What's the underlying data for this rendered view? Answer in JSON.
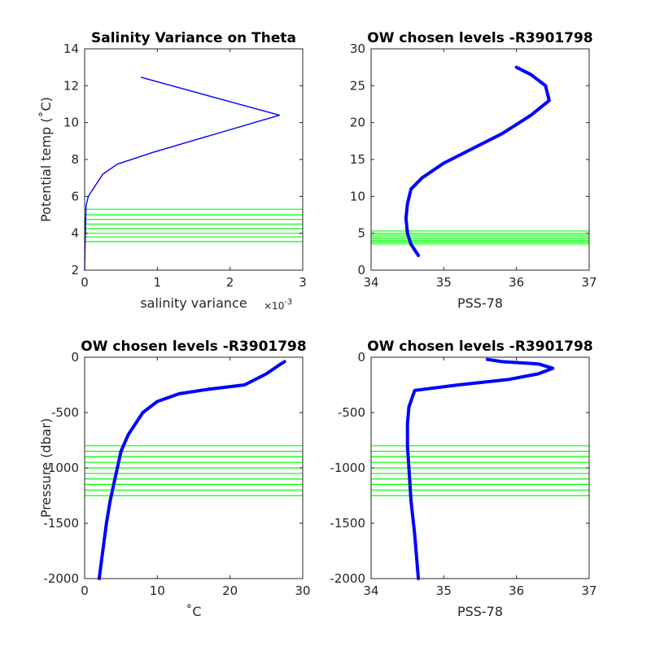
{
  "chart_data": [
    {
      "type": "line",
      "title": "Salinity Variance on Theta",
      "xlabel": "salinity variance",
      "x_exponent_label": "×10",
      "x_exponent_power": "-3",
      "ylabel": "Potential temp (˚C)",
      "xlim": [
        0,
        3
      ],
      "ylim": [
        2,
        14
      ],
      "xticks": [
        0,
        1,
        2,
        3
      ],
      "yticks": [
        2,
        4,
        6,
        8,
        10,
        12,
        14
      ],
      "grid": false,
      "series": [
        {
          "color": "#0000ff",
          "x": [
            0.0,
            0.01,
            0.02,
            0.05,
            0.1,
            0.25,
            0.45,
            0.95,
            2.68,
            0.78
          ],
          "y": [
            2.0,
            4.0,
            5.5,
            6.0,
            6.3,
            7.2,
            7.75,
            8.4,
            10.4,
            12.45
          ]
        }
      ],
      "hlines": {
        "color": "#00ff00",
        "y": [
          3.55,
          3.8,
          4.0,
          4.25,
          4.5,
          4.75,
          5.0,
          5.3
        ]
      }
    },
    {
      "type": "line",
      "title": "OW chosen levels -R3901798",
      "xlabel": "PSS-78",
      "ylabel": "",
      "xlim": [
        34,
        37
      ],
      "ylim": [
        0,
        30
      ],
      "xticks": [
        34,
        35,
        36,
        37
      ],
      "yticks": [
        0,
        5,
        10,
        15,
        20,
        25,
        30
      ],
      "grid": false,
      "series": [
        {
          "color": "#0000ff",
          "x": [
            34.65,
            34.55,
            34.5,
            34.48,
            34.5,
            34.55,
            34.7,
            35.0,
            35.4,
            35.8,
            36.2,
            36.45,
            36.4,
            36.2,
            36.0
          ],
          "y": [
            2.0,
            3.5,
            5.0,
            7.0,
            9.0,
            11.0,
            12.5,
            14.5,
            16.5,
            18.5,
            21.0,
            23.0,
            25.0,
            26.5,
            27.5
          ]
        }
      ],
      "hlines": {
        "color": "#00ff00",
        "y": [
          3.55,
          3.8,
          4.0,
          4.25,
          4.5,
          4.75,
          5.0,
          5.3
        ]
      }
    },
    {
      "type": "line",
      "title": "OW chosen levels -R3901798",
      "xlabel": "˚C",
      "ylabel": "Pressure (dbar)",
      "xlim": [
        0,
        30
      ],
      "ylim": [
        -2000,
        0
      ],
      "xticks": [
        0,
        10,
        20,
        30
      ],
      "yticks": [
        -2000,
        -1500,
        -1000,
        -500,
        0
      ],
      "grid": false,
      "series": [
        {
          "color": "#0000ff",
          "x": [
            2.0,
            2.5,
            3.0,
            3.5,
            4.0,
            4.5,
            5.0,
            6.0,
            8.0,
            10.0,
            13.0,
            17.0,
            22.0,
            25.0,
            27.0,
            27.5
          ],
          "y": [
            -2000,
            -1750,
            -1500,
            -1300,
            -1150,
            -1000,
            -850,
            -700,
            -500,
            -400,
            -330,
            -290,
            -250,
            -150,
            -60,
            -40
          ]
        }
      ],
      "hlines": {
        "color": "#00ff00",
        "y": [
          -800,
          -850,
          -900,
          -950,
          -1000,
          -1050,
          -1100,
          -1150,
          -1200,
          -1250
        ]
      }
    },
    {
      "type": "line",
      "title": "OW chosen levels -R3901798",
      "xlabel": "PSS-78",
      "ylabel": "",
      "xlim": [
        34,
        37
      ],
      "ylim": [
        -2000,
        0
      ],
      "xticks": [
        34,
        35,
        36,
        37
      ],
      "yticks": [
        -2000,
        -1500,
        -1000,
        -500,
        0
      ],
      "grid": false,
      "series": [
        {
          "color": "#0000ff",
          "x": [
            34.65,
            34.6,
            34.55,
            34.52,
            34.5,
            34.5,
            34.52,
            34.6,
            35.2,
            35.9,
            36.3,
            36.5,
            36.3,
            35.8,
            35.6
          ],
          "y": [
            -2000,
            -1600,
            -1300,
            -1000,
            -800,
            -600,
            -450,
            -300,
            -250,
            -200,
            -150,
            -100,
            -60,
            -40,
            -20
          ]
        }
      ],
      "hlines": {
        "color": "#00ff00",
        "y": [
          -800,
          -850,
          -900,
          -950,
          -1000,
          -1050,
          -1100,
          -1150,
          -1200,
          -1250
        ]
      }
    }
  ]
}
